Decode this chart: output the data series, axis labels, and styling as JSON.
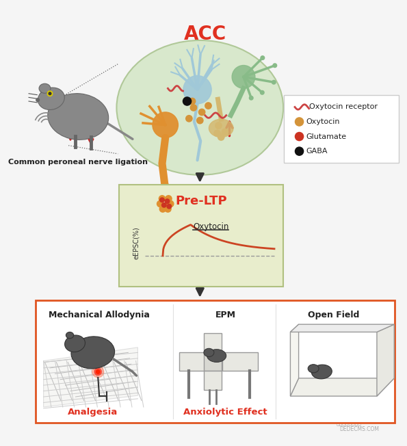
{
  "title": "ACC",
  "title_color": "#e03020",
  "title_fontsize": 20,
  "bg_color": "#f5f5f5",
  "legend_items": [
    {
      "label": "Oxytocin receptor",
      "color": "#cc4444",
      "type": "wave"
    },
    {
      "label": "Oxytocin",
      "color": "#d4943a",
      "type": "circle"
    },
    {
      "label": "Glutamate",
      "color": "#cc3322",
      "type": "circle"
    },
    {
      "label": "GABA",
      "color": "#111111",
      "type": "circle"
    }
  ],
  "nerve_label": "Common peroneal nerve ligation",
  "preltp_label": "Pre-LTP",
  "preltp_label_color": "#e03020",
  "preltp_bg": "#e8edcc",
  "preltp_border": "#b0c080",
  "graph_ylabel": "eEPSC(%)",
  "graph_annotation": "Oxytocin",
  "graph_curve_color": "#cc4422",
  "graph_dashed_color": "#999999",
  "graph_arrow_color": "#4488bb",
  "bottom_border_color": "#e05522",
  "bottom_bg": "#ffffff",
  "label_mechanical": "Mechanical Allodynia",
  "label_epm": "EPM",
  "label_openfield": "Open Field",
  "label_analgesia": "Analgesia",
  "label_analgesia_color": "#e03020",
  "label_anxiolytic": "Anxiolytic Effect",
  "label_anxiolytic_color": "#e03020",
  "arrow_color": "#333333",
  "ellipse_bg": "#d8e8cc",
  "ellipse_border": "#b0c898",
  "neuron_blue": "#a0c8d8",
  "neuron_orange": "#e09030",
  "neuron_green": "#88bb88",
  "neuron_tan": "#d4b870",
  "mouse_color": "#888888",
  "mouse_dark": "#555555"
}
